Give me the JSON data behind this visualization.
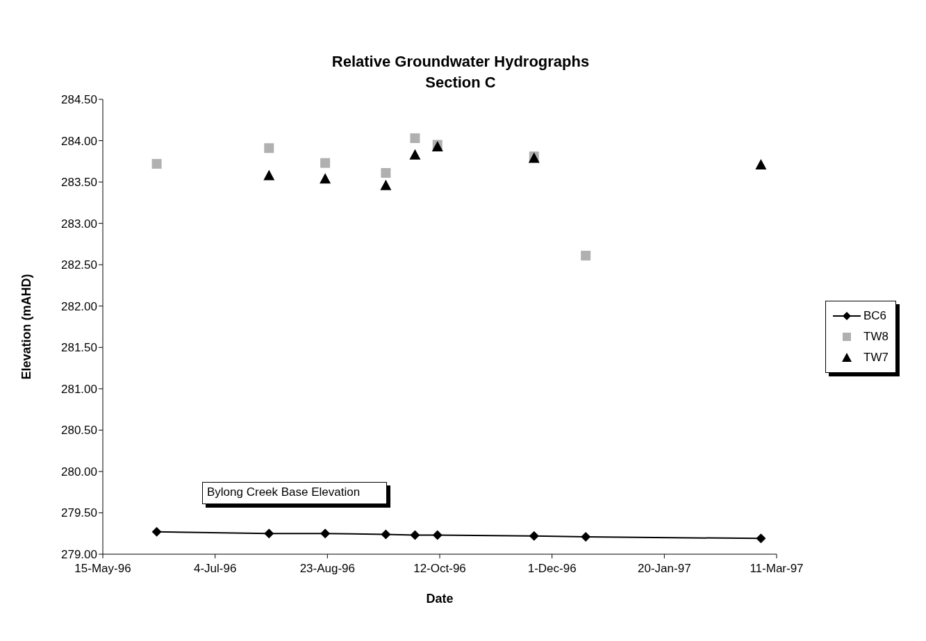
{
  "chart_data": {
    "type": "scatter",
    "title": "Relative Groundwater Hydrographs",
    "subtitle": "Section C",
    "xlabel": "Date",
    "ylabel": "Elevation (mAHD)",
    "annotations": [
      "Bylong Creek Base Elevation"
    ],
    "xlim": [
      "1996-05-15",
      "1997-03-11"
    ],
    "xticks": [
      {
        "value": "1996-05-15",
        "label": "15-May-96"
      },
      {
        "value": "1996-07-04",
        "label": "4-Jul-96"
      },
      {
        "value": "1996-08-23",
        "label": "23-Aug-96"
      },
      {
        "value": "1996-10-12",
        "label": "12-Oct-96"
      },
      {
        "value": "1996-12-01",
        "label": "1-Dec-96"
      },
      {
        "value": "1997-01-20",
        "label": "20-Jan-97"
      },
      {
        "value": "1997-03-11",
        "label": "11-Mar-97"
      }
    ],
    "ylim": [
      279,
      284.5
    ],
    "yticks": [
      {
        "value": 279,
        "label": "279.00"
      },
      {
        "value": 279.5,
        "label": "279.50"
      },
      {
        "value": 280,
        "label": "280.00"
      },
      {
        "value": 280.5,
        "label": "280.50"
      },
      {
        "value": 281,
        "label": "281.00"
      },
      {
        "value": 281.5,
        "label": "281.50"
      },
      {
        "value": 282,
        "label": "282.00"
      },
      {
        "value": 282.5,
        "label": "282.50"
      },
      {
        "value": 283,
        "label": "283.00"
      },
      {
        "value": 283.5,
        "label": "283.50"
      },
      {
        "value": 284,
        "label": "284.00"
      },
      {
        "value": 284.5,
        "label": "284.50"
      }
    ],
    "legend": "right",
    "series": [
      {
        "name": "BC6",
        "type": "line",
        "marker": "diamond",
        "line_style": "solid",
        "color": "#000000",
        "x": [
          "1996-06-08",
          "1996-07-28",
          "1996-08-22",
          "1996-09-18",
          "1996-10-01",
          "1996-10-11",
          "1996-11-23",
          "1996-12-16",
          "1997-03-04"
        ],
        "values": [
          279.27,
          279.25,
          279.25,
          279.24,
          279.23,
          279.23,
          279.22,
          279.21,
          279.19
        ]
      },
      {
        "name": "TW8",
        "type": "scatter",
        "marker": "square",
        "color": "#b0b0b0",
        "x": [
          "1996-06-08",
          "1996-07-28",
          "1996-08-22",
          "1996-09-18",
          "1996-10-01",
          "1996-10-11",
          "1996-11-23",
          "1996-12-16"
        ],
        "values": [
          283.72,
          283.91,
          283.73,
          283.61,
          284.03,
          283.95,
          283.81,
          282.61
        ]
      },
      {
        "name": "TW7",
        "type": "scatter",
        "marker": "triangle",
        "color": "#000000",
        "x": [
          "1996-07-28",
          "1996-08-22",
          "1996-09-18",
          "1996-10-01",
          "1996-10-11",
          "1996-11-23",
          "1997-03-04"
        ],
        "values": [
          283.58,
          283.54,
          283.46,
          283.83,
          283.93,
          283.79,
          283.71
        ]
      }
    ]
  }
}
